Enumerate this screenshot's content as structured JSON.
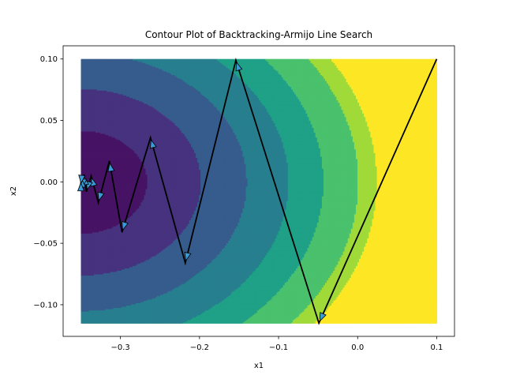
{
  "chart_data": {
    "type": "contour",
    "title": "Contour Plot of Backtracking-Armijo Line Search",
    "xlabel": "x1",
    "ylabel": "x2",
    "xlim": [
      -0.35,
      0.1
    ],
    "ylim": [
      -0.115,
      0.1
    ],
    "view_xlim": [
      -0.3725,
      0.1225
    ],
    "view_ylim": [
      -0.12575,
      0.11075
    ],
    "xticks": [
      -0.3,
      -0.2,
      -0.1,
      0.0,
      0.1
    ],
    "xtick_labels": [
      "−0.3",
      "−0.2",
      "−0.1",
      "0.0",
      "0.1"
    ],
    "yticks": [
      -0.1,
      -0.05,
      0.0,
      0.05,
      0.1
    ],
    "ytick_labels": [
      "−0.10",
      "−0.05",
      "0.00",
      "0.05",
      "0.10"
    ],
    "contour_function": "x1^2 + 4 * x2^2 (level sets centred near x1 = -0.35, x2 = 0)",
    "contour_levels": [
      0.0,
      0.007,
      0.023,
      0.044,
      0.069,
      0.094,
      0.123,
      0.14
    ],
    "contour_colors": [
      "#471365",
      "#46327e",
      "#365c8d",
      "#277f8e",
      "#1fa187",
      "#4ac16d",
      "#a0da39",
      "#fde725"
    ],
    "path": {
      "color": "#000000",
      "arrow_color": "#3a9ad6",
      "points": [
        [
          0.1,
          0.1
        ],
        [
          -0.049,
          -0.115
        ],
        [
          -0.154,
          0.099
        ],
        [
          -0.218,
          -0.066
        ],
        [
          -0.262,
          0.036
        ],
        [
          -0.298,
          -0.041
        ],
        [
          -0.314,
          0.017
        ],
        [
          -0.328,
          -0.017
        ],
        [
          -0.337,
          0.005
        ],
        [
          -0.343,
          -0.008
        ],
        [
          -0.346,
          0.006
        ],
        [
          -0.348,
          -0.006
        ],
        [
          -0.349,
          0.004
        ],
        [
          -0.35,
          -0.003
        ],
        [
          -0.35,
          0.001
        ]
      ]
    }
  }
}
